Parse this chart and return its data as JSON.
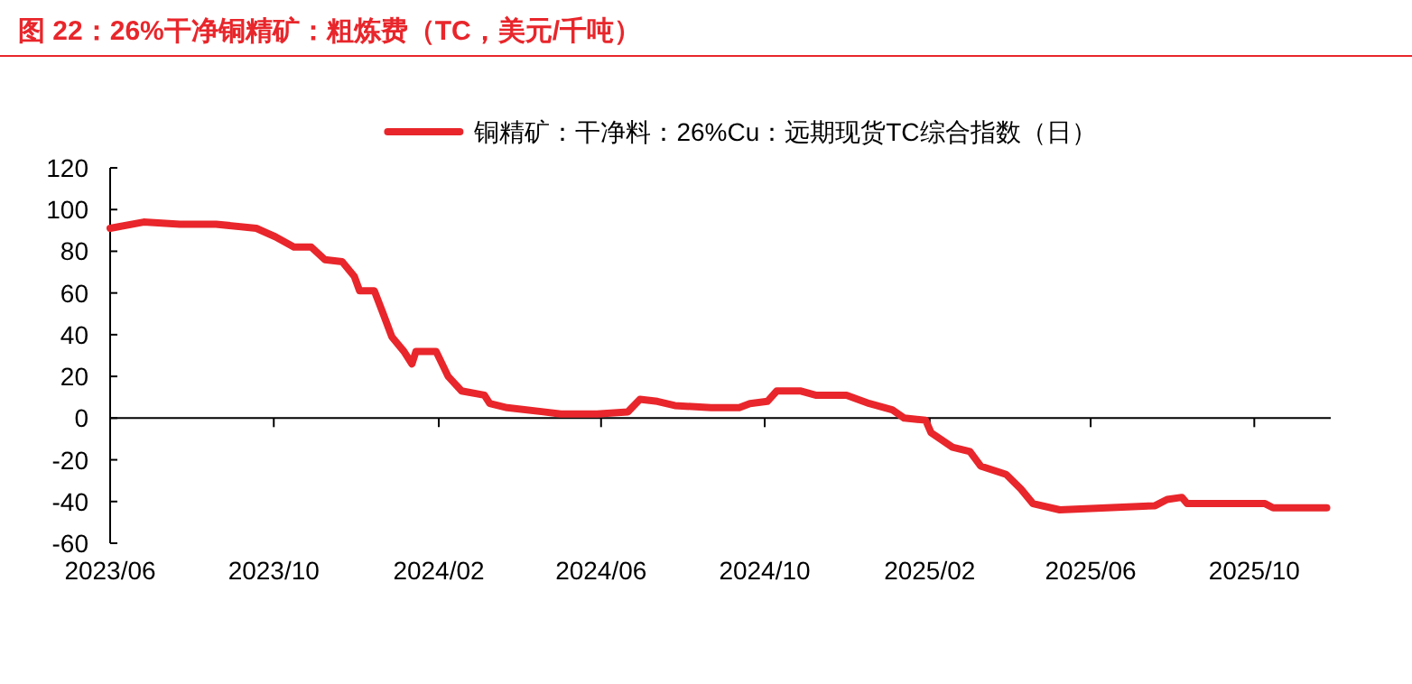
{
  "chart_data": {
    "type": "line",
    "title": "图 22：26%干净铜精矿：粗炼费（TC，美元/千吨）",
    "x": [
      "2023-06-01",
      "2023-06-26",
      "2023-07-23",
      "2023-08-19",
      "2023-09-18",
      "2023-10-02",
      "2023-10-16",
      "2023-10-29",
      "2023-11-08",
      "2023-11-21",
      "2023-11-30",
      "2023-12-04",
      "2023-12-15",
      "2023-12-21",
      "2023-12-28",
      "2024-01-06",
      "2024-01-12",
      "2024-01-15",
      "2024-01-30",
      "2024-02-08",
      "2024-02-18",
      "2024-03-06",
      "2024-03-10",
      "2024-03-23",
      "2024-04-19",
      "2024-05-02",
      "2024-05-29",
      "2024-06-21",
      "2024-06-30",
      "2024-07-13",
      "2024-07-26",
      "2024-08-22",
      "2024-09-12",
      "2024-09-20",
      "2024-10-03",
      "2024-10-10",
      "2024-10-28",
      "2024-11-08",
      "2024-12-01",
      "2024-12-18",
      "2025-01-04",
      "2025-01-13",
      "2025-01-29",
      "2025-02-02",
      "2025-02-18",
      "2025-03-03",
      "2025-03-11",
      "2025-03-30",
      "2025-04-10",
      "2025-04-19",
      "2025-05-09",
      "2025-06-13",
      "2025-07-19",
      "2025-07-28",
      "2025-08-08",
      "2025-08-12",
      "2025-09-10",
      "2025-10-09",
      "2025-10-15",
      "2025-11-24"
    ],
    "series": [
      {
        "name": "铜精矿：干净料：26%Cu：远期现货TC综合指数（日）",
        "color": "#e8262b",
        "values": [
          91,
          94,
          93,
          93,
          91,
          87,
          82,
          82,
          76,
          75,
          68,
          61,
          61,
          51,
          39,
          32,
          26,
          32,
          32,
          20,
          13,
          11,
          7,
          5,
          3,
          2,
          2,
          3,
          9,
          8,
          6,
          5,
          5,
          7,
          8,
          13,
          13,
          11,
          11,
          7,
          4,
          0,
          -1,
          -7,
          -14,
          -16,
          -23,
          -27,
          -34,
          -41,
          -44,
          -43,
          -42,
          -39,
          -38,
          -41,
          -41,
          -41,
          -43,
          -43
        ]
      }
    ],
    "xlim": [
      "2023-06-01",
      "2025-11-27"
    ],
    "xticks": [
      {
        "value": "2023-06-01",
        "label": "2023/06"
      },
      {
        "value": "2023-10-01",
        "label": "2023/10"
      },
      {
        "value": "2024-02-01",
        "label": "2024/02"
      },
      {
        "value": "2024-06-01",
        "label": "2024/06"
      },
      {
        "value": "2024-10-01",
        "label": "2024/10"
      },
      {
        "value": "2025-02-01",
        "label": "2025/02"
      },
      {
        "value": "2025-06-01",
        "label": "2025/06"
      },
      {
        "value": "2025-10-01",
        "label": "2025/10"
      }
    ],
    "ylim": [
      -60,
      120
    ],
    "yticks": [
      -60,
      -40,
      -20,
      0,
      20,
      40,
      60,
      80,
      100,
      120
    ],
    "legend": "top"
  }
}
